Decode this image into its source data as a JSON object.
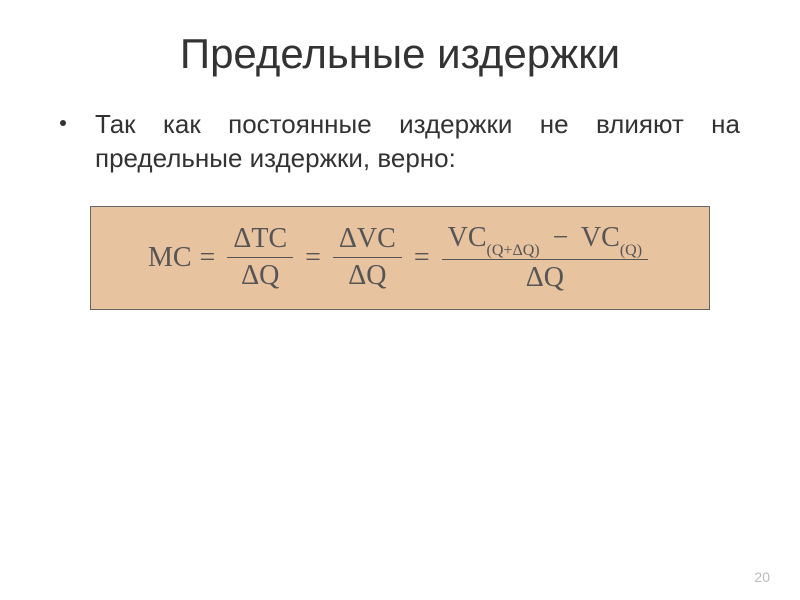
{
  "slide": {
    "title": "Предельные издержки",
    "bullet_text": "Так как постоянные издержки не влияют на предельные издержки, верно:",
    "page_number": "20"
  },
  "formula": {
    "lhs": "MC",
    "frac1_num": "ΔTC",
    "frac1_den": "ΔQ",
    "frac2_num": "ΔVC",
    "frac2_den": "ΔQ",
    "vc1": "VC",
    "vc1_sub": "(Q+ΔQ)",
    "vc2": "VC",
    "vc2_sub": "(Q)",
    "frac3_den": "ΔQ",
    "minus": "−",
    "equals": "="
  },
  "style": {
    "background_color": "#ffffff",
    "title_color": "#333333",
    "title_fontsize": 42,
    "body_color": "#333333",
    "body_fontsize": 26,
    "formula_bg": "#e8c3a0",
    "formula_border": "#666666",
    "formula_color": "#555555",
    "formula_fontsize": 28,
    "sub_fontsize": 16,
    "page_number_color": "#bbbbbb",
    "page_number_fontsize": 14
  }
}
